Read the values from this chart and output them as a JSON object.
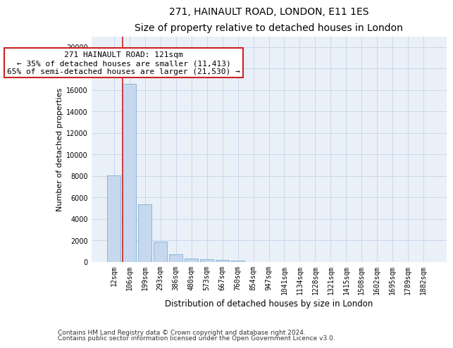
{
  "title": "271, HAINAULT ROAD, LONDON, E11 1ES",
  "subtitle": "Size of property relative to detached houses in London",
  "xlabel": "Distribution of detached houses by size in London",
  "ylabel": "Number of detached properties",
  "bar_color": "#c5d8ed",
  "bar_edge_color": "#7bafd4",
  "grid_color": "#c8d8ea",
  "bg_color": "#eaf0f8",
  "categories": [
    "12sqm",
    "106sqm",
    "199sqm",
    "293sqm",
    "386sqm",
    "480sqm",
    "573sqm",
    "667sqm",
    "760sqm",
    "854sqm",
    "947sqm",
    "1041sqm",
    "1134sqm",
    "1228sqm",
    "1321sqm",
    "1415sqm",
    "1508sqm",
    "1602sqm",
    "1695sqm",
    "1789sqm",
    "1882sqm"
  ],
  "values": [
    8050,
    16550,
    5350,
    1850,
    700,
    320,
    200,
    175,
    130,
    0,
    0,
    0,
    0,
    0,
    0,
    0,
    0,
    0,
    0,
    0,
    0
  ],
  "ylim": [
    0,
    21000
  ],
  "yticks": [
    0,
    2000,
    4000,
    6000,
    8000,
    10000,
    12000,
    14000,
    16000,
    18000,
    20000
  ],
  "vline_color": "#cc2222",
  "annotation_line1": "271 HAINAULT ROAD: 121sqm",
  "annotation_line2": "← 35% of detached houses are smaller (11,413)",
  "annotation_line3": "65% of semi-detached houses are larger (21,530) →",
  "annotation_box_color": "#ffffff",
  "annotation_box_edge": "#cc2222",
  "footer_line1": "Contains HM Land Registry data © Crown copyright and database right 2024.",
  "footer_line2": "Contains public sector information licensed under the Open Government Licence v3.0.",
  "title_fontsize": 10,
  "subtitle_fontsize": 9,
  "tick_fontsize": 7,
  "ylabel_fontsize": 8,
  "xlabel_fontsize": 8.5,
  "annotation_fontsize": 8,
  "footer_fontsize": 6.5
}
